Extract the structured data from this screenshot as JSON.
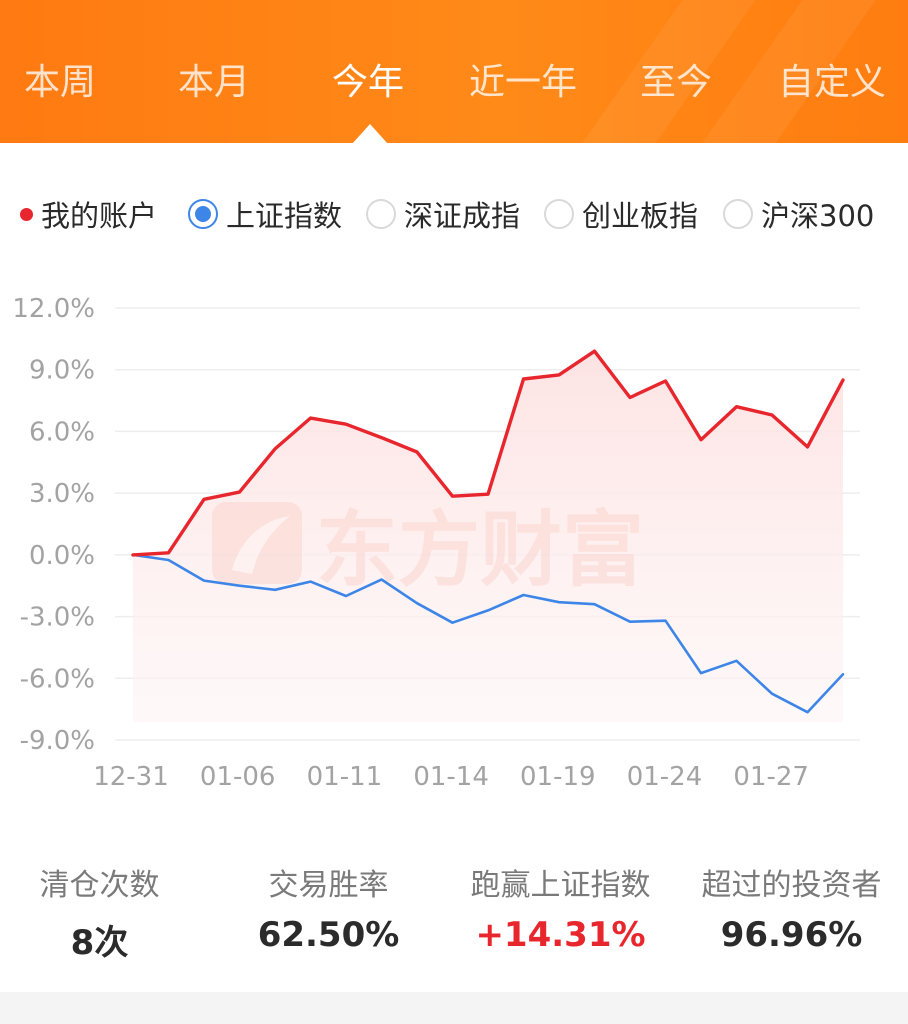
{
  "tabs": [
    "本周",
    "本月",
    "今年",
    "近一年",
    "至今",
    "自定义"
  ],
  "active_tab": "今年",
  "legend": {
    "account": "我的账户",
    "options": [
      "上证指数",
      "深证成指",
      "创业板指",
      "沪深300"
    ],
    "selected": "上证指数"
  },
  "watermark": "东方财富",
  "colors": {
    "header": "#ff8a18",
    "account_line": "#e8262d",
    "index_line": "#3d86e8"
  },
  "chart_data": {
    "type": "line",
    "ylim": [
      -9,
      12
    ],
    "y_ticks": [
      "12.0%",
      "9.0%",
      "6.0%",
      "3.0%",
      "0.0%",
      "-3.0%",
      "-6.0%",
      "-9.0%"
    ],
    "x_tick_labels": [
      "12-31",
      "01-06",
      "01-11",
      "01-14",
      "01-19",
      "01-24",
      "01-27"
    ],
    "series": [
      {
        "name": "我的账户",
        "color": "#e8262d",
        "values": [
          0.0,
          0.1,
          2.7,
          3.05,
          5.15,
          6.65,
          6.35,
          5.7,
          5.0,
          2.85,
          2.95,
          8.55,
          8.75,
          9.9,
          7.65,
          8.45,
          5.6,
          7.2,
          6.8,
          5.25,
          8.5
        ]
      },
      {
        "name": "上证指数",
        "color": "#3d86e8",
        "values": [
          0.0,
          -0.25,
          -1.25,
          -1.5,
          -1.7,
          -1.3,
          -2.0,
          -1.2,
          -2.35,
          -3.3,
          -2.7,
          -1.95,
          -2.3,
          -2.4,
          -3.25,
          -3.2,
          -5.75,
          -5.15,
          -6.75,
          -7.65,
          -5.8
        ]
      }
    ]
  },
  "stats": [
    {
      "label": "清仓次数",
      "value": "8次"
    },
    {
      "label": "交易胜率",
      "value": "62.50%"
    },
    {
      "label": "跑赢上证指数",
      "value": "+14.31%"
    },
    {
      "label": "超过的投资者",
      "value": "96.96%"
    }
  ]
}
